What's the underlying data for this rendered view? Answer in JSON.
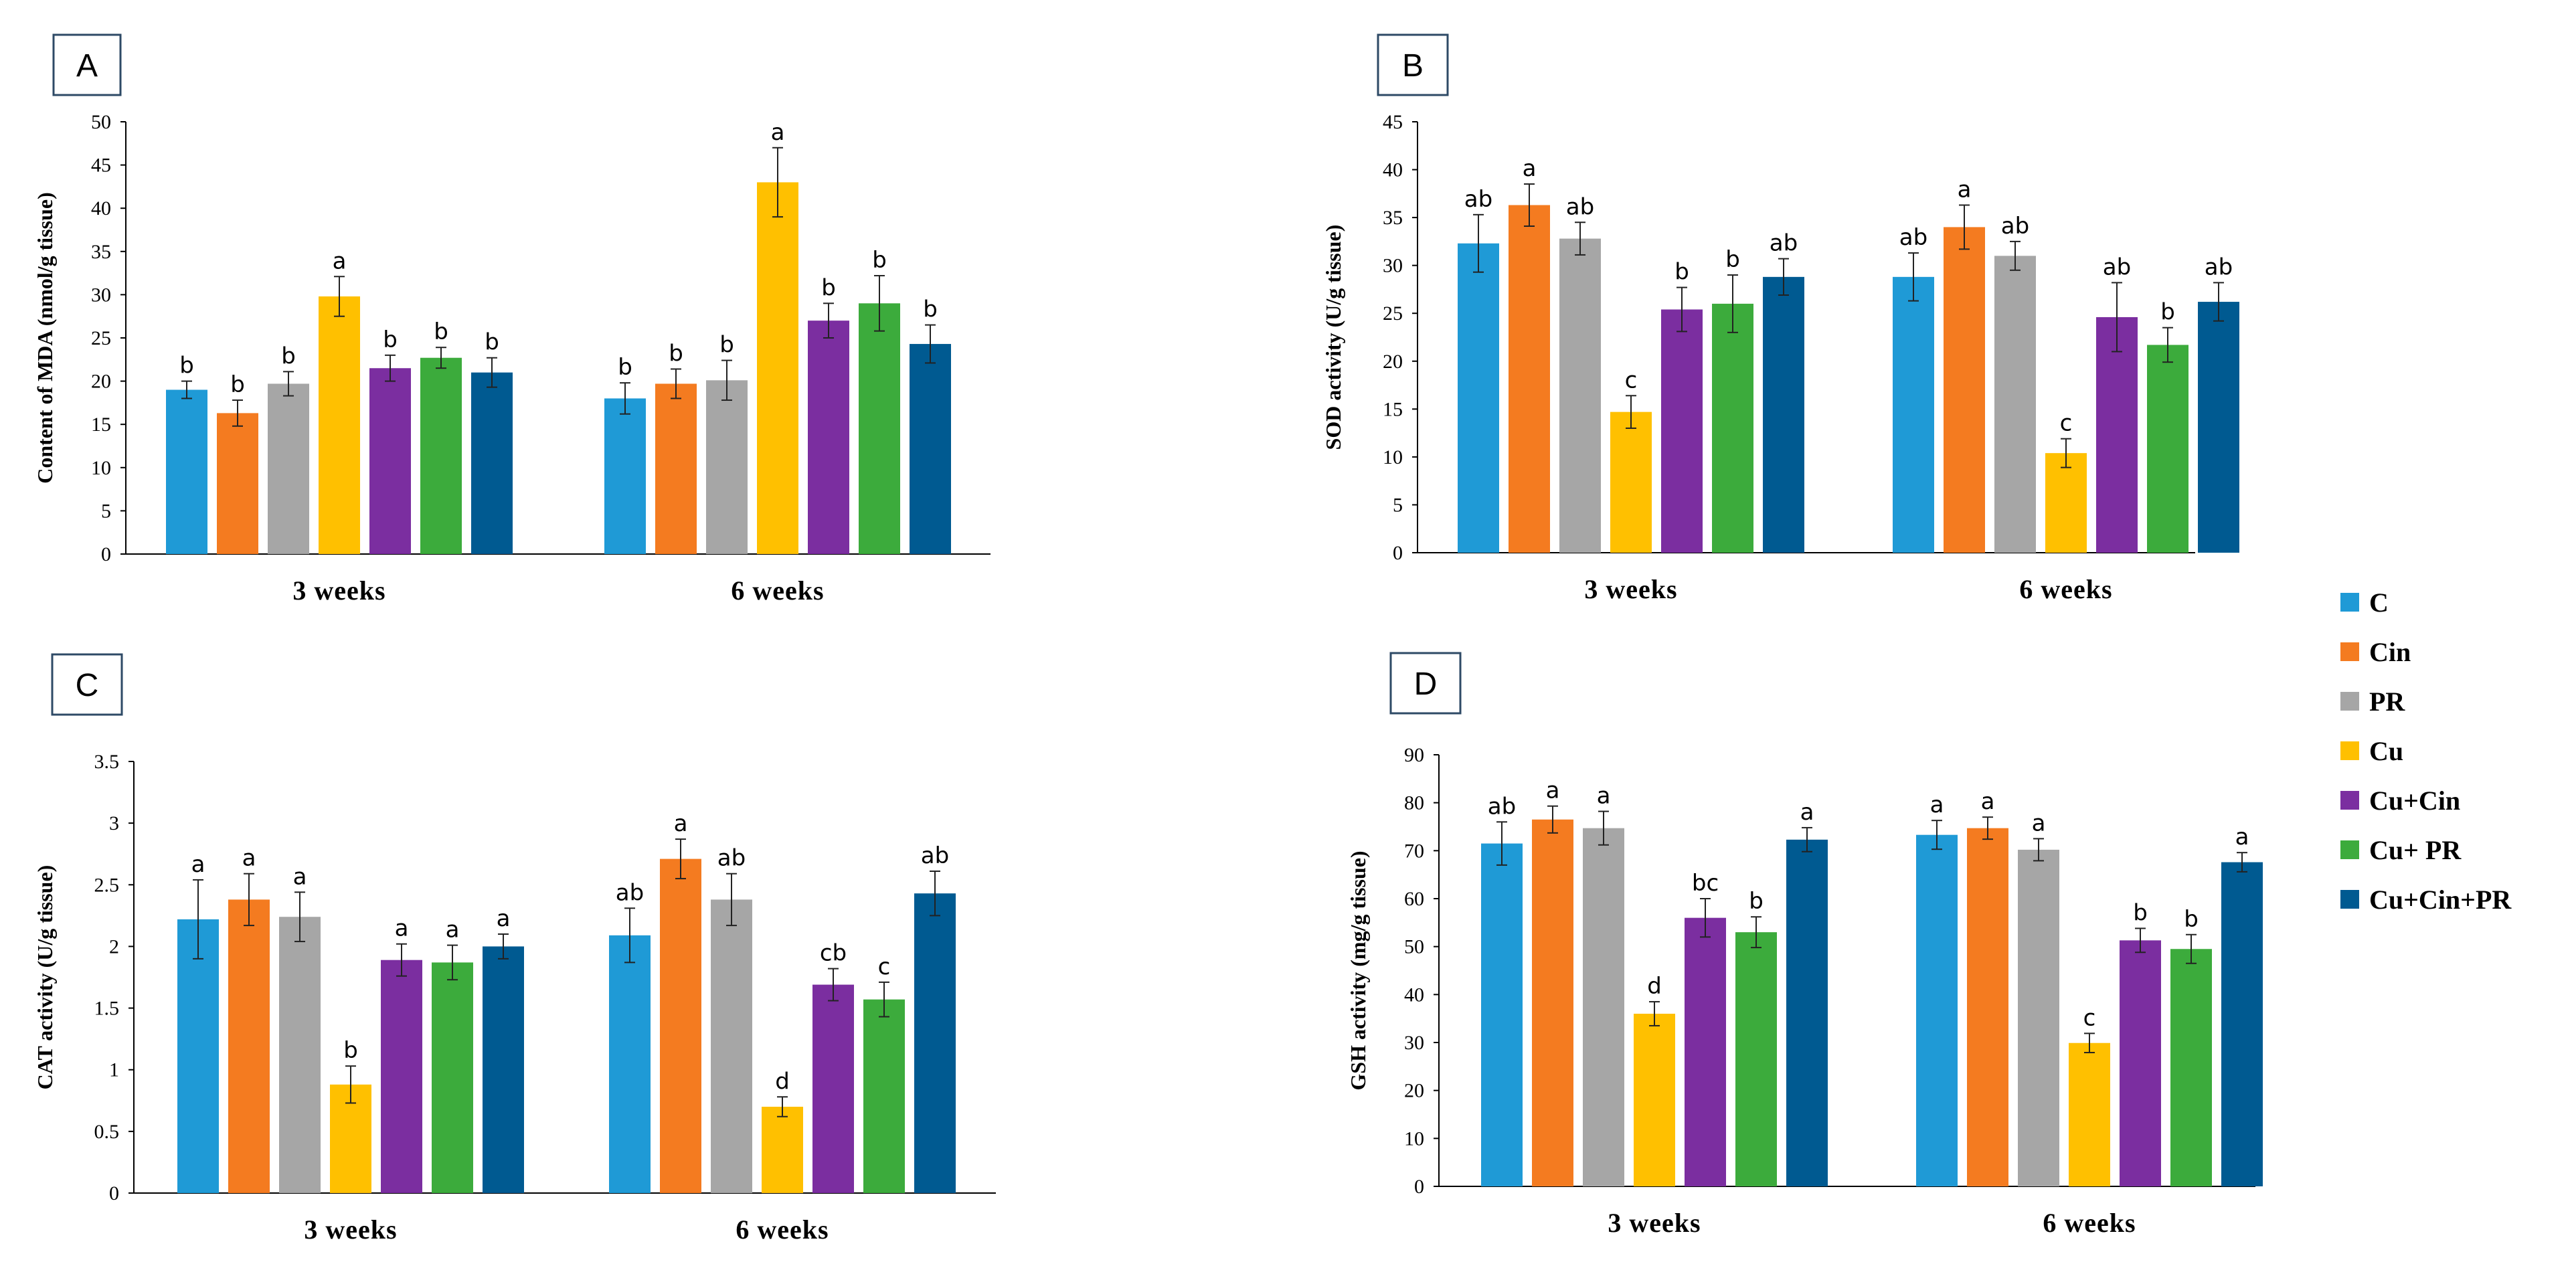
{
  "chart_data": [
    {
      "panel": "A",
      "type": "bar",
      "ylabel": "Content of MDA (nmol/g tissue)",
      "ylim": [
        0,
        50
      ],
      "yticks": [
        0,
        5,
        10,
        15,
        20,
        25,
        30,
        35,
        40,
        45,
        50
      ],
      "categories": [
        "3 weeks",
        "6 weeks"
      ],
      "series": [
        {
          "name": "C",
          "values": [
            19.0,
            18.0
          ],
          "errors": [
            1.0,
            1.8
          ],
          "labels": [
            "b",
            "b"
          ]
        },
        {
          "name": "Cin",
          "values": [
            16.3,
            19.7
          ],
          "errors": [
            1.5,
            1.7
          ],
          "labels": [
            "b",
            "b"
          ]
        },
        {
          "name": "PR",
          "values": [
            19.7,
            20.1
          ],
          "errors": [
            1.4,
            2.3
          ],
          "labels": [
            "b",
            "b"
          ]
        },
        {
          "name": "Cu",
          "values": [
            29.8,
            43.0
          ],
          "errors": [
            2.3,
            4.0
          ],
          "labels": [
            "a",
            "a"
          ]
        },
        {
          "name": "Cu+Cin",
          "values": [
            21.5,
            27.0
          ],
          "errors": [
            1.5,
            2.0
          ],
          "labels": [
            "b",
            "b"
          ]
        },
        {
          "name": "Cu+ PR",
          "values": [
            22.7,
            29.0
          ],
          "errors": [
            1.2,
            3.2
          ],
          "labels": [
            "b",
            "b"
          ]
        },
        {
          "name": "Cu+Cin+PR",
          "values": [
            21.0,
            24.3
          ],
          "errors": [
            1.7,
            2.2
          ],
          "labels": [
            "b",
            "b"
          ]
        }
      ]
    },
    {
      "panel": "B",
      "type": "bar",
      "ylabel": "SOD activity (U/g tissue)",
      "ylim": [
        0,
        45
      ],
      "yticks": [
        0,
        5,
        10,
        15,
        20,
        25,
        30,
        35,
        40,
        45
      ],
      "categories": [
        "3 weeks",
        "6 weeks"
      ],
      "series": [
        {
          "name": "C",
          "values": [
            32.3,
            28.8
          ],
          "errors": [
            3.0,
            2.5
          ],
          "labels": [
            "ab",
            "ab"
          ]
        },
        {
          "name": "Cin",
          "values": [
            36.3,
            34.0
          ],
          "errors": [
            2.2,
            2.3
          ],
          "labels": [
            "a",
            "a"
          ]
        },
        {
          "name": "PR",
          "values": [
            32.8,
            31.0
          ],
          "errors": [
            1.7,
            1.5
          ],
          "labels": [
            "ab",
            "ab"
          ]
        },
        {
          "name": "Cu",
          "values": [
            14.7,
            10.4
          ],
          "errors": [
            1.7,
            1.5
          ],
          "labels": [
            "c",
            "c"
          ]
        },
        {
          "name": "Cu+Cin",
          "values": [
            25.4,
            24.6
          ],
          "errors": [
            2.3,
            3.6
          ],
          "labels": [
            "b",
            "ab"
          ]
        },
        {
          "name": "Cu+ PR",
          "values": [
            26.0,
            21.7
          ],
          "errors": [
            3.0,
            1.8
          ],
          "labels": [
            "b",
            "b"
          ]
        },
        {
          "name": "Cu+Cin+PR",
          "values": [
            28.8,
            26.2
          ],
          "errors": [
            1.9,
            2.0
          ],
          "labels": [
            "ab",
            "ab"
          ]
        }
      ]
    },
    {
      "panel": "C",
      "type": "bar",
      "ylabel": "CAT activity (U/g tissue)",
      "ylim": [
        0,
        3.5
      ],
      "yticks": [
        0,
        0.5,
        1,
        1.5,
        2,
        2.5,
        3,
        3.5
      ],
      "categories": [
        "3 weeks",
        "6 weeks"
      ],
      "series": [
        {
          "name": "C",
          "values": [
            2.22,
            2.09
          ],
          "errors": [
            0.32,
            0.22
          ],
          "labels": [
            "a",
            "ab"
          ]
        },
        {
          "name": "Cin",
          "values": [
            2.38,
            2.71
          ],
          "errors": [
            0.21,
            0.16
          ],
          "labels": [
            "a",
            "a"
          ]
        },
        {
          "name": "PR",
          "values": [
            2.24,
            2.38
          ],
          "errors": [
            0.2,
            0.21
          ],
          "labels": [
            "a",
            "ab"
          ]
        },
        {
          "name": "Cu",
          "values": [
            0.88,
            0.7
          ],
          "errors": [
            0.15,
            0.08
          ],
          "labels": [
            "b",
            "d"
          ]
        },
        {
          "name": "Cu+Cin",
          "values": [
            1.89,
            1.69
          ],
          "errors": [
            0.13,
            0.13
          ],
          "labels": [
            "a",
            "cb"
          ]
        },
        {
          "name": "Cu+ PR",
          "values": [
            1.87,
            1.57
          ],
          "errors": [
            0.14,
            0.14
          ],
          "labels": [
            "a",
            "c"
          ]
        },
        {
          "name": "Cu+Cin+PR",
          "values": [
            2.0,
            2.43
          ],
          "errors": [
            0.1,
            0.18
          ],
          "labels": [
            "a",
            "ab"
          ]
        }
      ]
    },
    {
      "panel": "D",
      "type": "bar",
      "ylabel": "GSH activity (mg/g tissue)",
      "ylim": [
        0,
        90
      ],
      "yticks": [
        0,
        10,
        20,
        30,
        40,
        50,
        60,
        70,
        80,
        90
      ],
      "categories": [
        "3 weeks",
        "6 weeks"
      ],
      "series": [
        {
          "name": "C",
          "values": [
            71.5,
            73.3
          ],
          "errors": [
            4.5,
            3.0
          ],
          "labels": [
            "ab",
            "a"
          ]
        },
        {
          "name": "Cin",
          "values": [
            76.5,
            74.7
          ],
          "errors": [
            2.8,
            2.3
          ],
          "labels": [
            "a",
            "a"
          ]
        },
        {
          "name": "PR",
          "values": [
            74.7,
            70.2
          ],
          "errors": [
            3.5,
            2.3
          ],
          "labels": [
            "a",
            "a"
          ]
        },
        {
          "name": "Cu",
          "values": [
            36.0,
            29.9
          ],
          "errors": [
            2.5,
            2.0
          ],
          "labels": [
            "d",
            "c"
          ]
        },
        {
          "name": "Cu+Cin",
          "values": [
            56.0,
            51.3
          ],
          "errors": [
            4.0,
            2.5
          ],
          "labels": [
            "bc",
            "b"
          ]
        },
        {
          "name": "Cu+ PR",
          "values": [
            53.0,
            49.5
          ],
          "errors": [
            3.2,
            3.0
          ],
          "labels": [
            "b",
            "b"
          ]
        },
        {
          "name": "Cu+Cin+PR",
          "values": [
            72.3,
            67.6
          ],
          "errors": [
            2.5,
            2.0
          ],
          "labels": [
            "a",
            "a"
          ]
        }
      ]
    }
  ],
  "legend": {
    "placement": "right",
    "items": [
      {
        "name": "C",
        "color": "#1f9ad6"
      },
      {
        "name": "Cin",
        "color": "#f47b20"
      },
      {
        "name": "PR",
        "color": "#a6a6a6"
      },
      {
        "name": "Cu",
        "color": "#ffc000"
      },
      {
        "name": "Cu+Cin",
        "color": "#7b2ea0"
      },
      {
        "name": "Cu+ PR",
        "color": "#3cab3c"
      },
      {
        "name": "Cu+Cin+PR",
        "color": "#005a91"
      }
    ]
  }
}
